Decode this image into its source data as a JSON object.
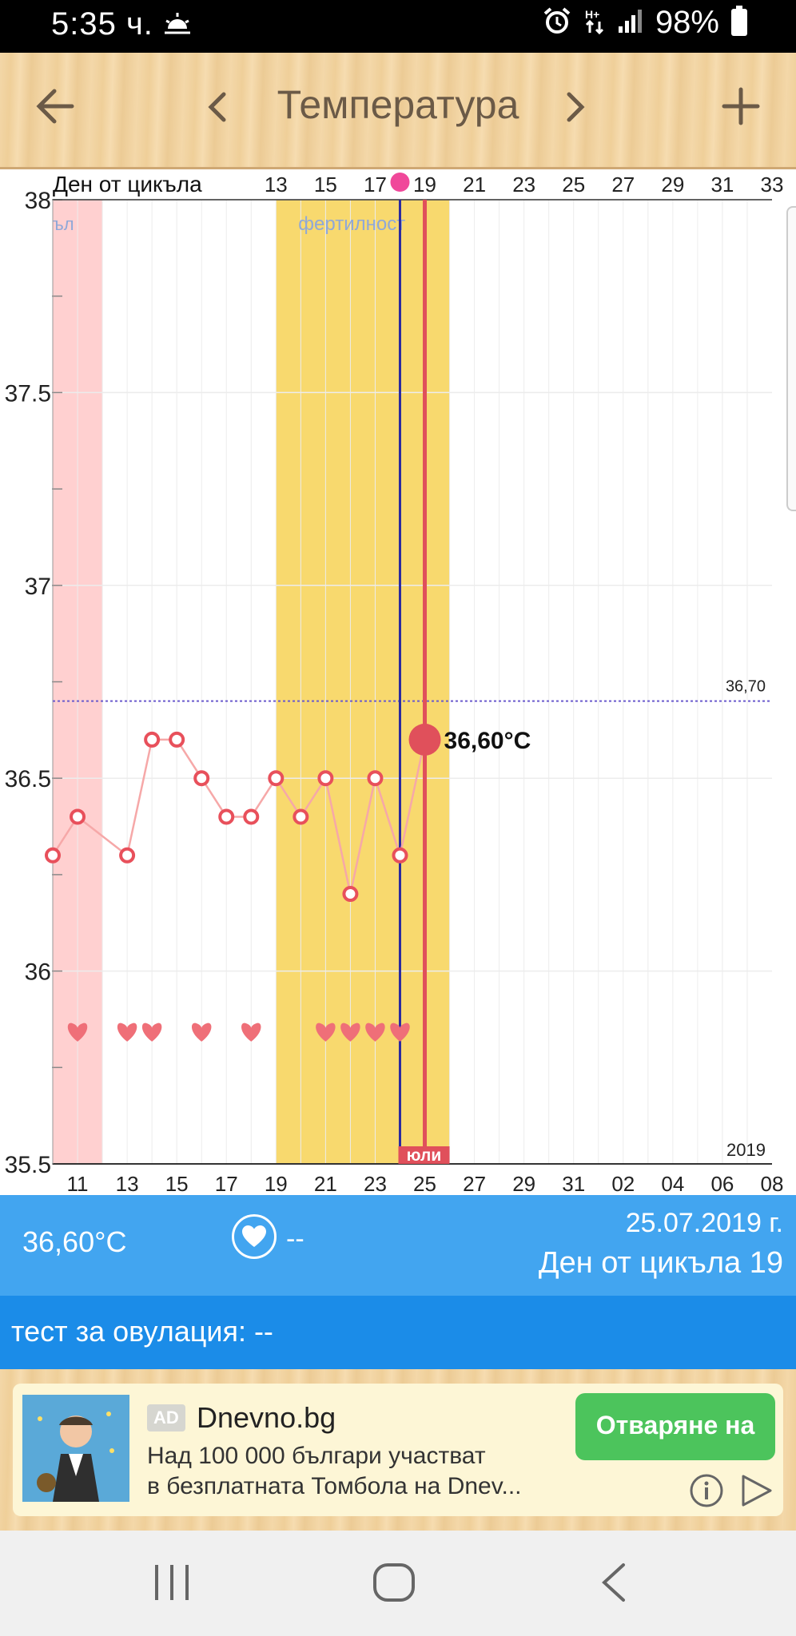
{
  "status_bar": {
    "time": "5:35 ч.",
    "battery": "98%"
  },
  "header": {
    "title": "Температура"
  },
  "chart_data": {
    "type": "line",
    "top_axis_label": "Ден от цикъла",
    "cycle_day_ticks": [
      "13",
      "15",
      "17",
      "19",
      "21",
      "23",
      "25",
      "27",
      "29",
      "31",
      "33"
    ],
    "date_ticks": [
      "11",
      "13",
      "15",
      "17",
      "19",
      "21",
      "23",
      "25",
      "27",
      "29",
      "31",
      "02",
      "04",
      "06",
      "08"
    ],
    "y_ticks": [
      "38",
      "37.5",
      "37",
      "36.5",
      "36",
      "35.5"
    ],
    "ylim": [
      35.5,
      38
    ],
    "x_domain": [
      10,
      39
    ],
    "year_label": "2019",
    "month_label": "юли",
    "period_label": "ъл",
    "fertility_label": "фертилност",
    "coverline_label": "36,70",
    "coverline_value": 36.7,
    "selected_label": "36,60°C",
    "selected_day": 25,
    "selected_value": 36.6,
    "current_marker_day": 24,
    "period_range": [
      10,
      12
    ],
    "fertility_range": [
      19,
      26
    ],
    "temperature_series": {
      "x": [
        10,
        11,
        13,
        14,
        15,
        16,
        17,
        18,
        19,
        20,
        21,
        22,
        23,
        24,
        25
      ],
      "values": [
        36.3,
        36.4,
        36.3,
        36.6,
        36.6,
        36.5,
        36.4,
        36.4,
        36.5,
        36.4,
        36.5,
        36.2,
        36.5,
        36.3,
        36.6
      ]
    },
    "intercourse_days": [
      11,
      13,
      14,
      16,
      18,
      21,
      22,
      23,
      24
    ]
  },
  "info_bar": {
    "temperature": "36,60°C",
    "intercourse": "--",
    "date": "25.07.2019 г.",
    "cycle_day": "Ден от цикъла 19"
  },
  "ovulation_test": {
    "label": "тест за овулация: --"
  },
  "ad": {
    "badge": "AD",
    "title": "Dnevno.bg",
    "description_line1": "Над 100 000 българи участват",
    "description_line2": "в безплатната Томбола на Dnev...",
    "button": "Отваряне на"
  },
  "colors": {
    "period": "#ffd0d0",
    "fertility": "#f8d96e",
    "temperature_line": "#f6a8a8",
    "point": "#e8505b",
    "info_bar": "#42a5f0",
    "ovulation_bar": "#1b8ce8",
    "ad_button": "#4cc45c"
  }
}
